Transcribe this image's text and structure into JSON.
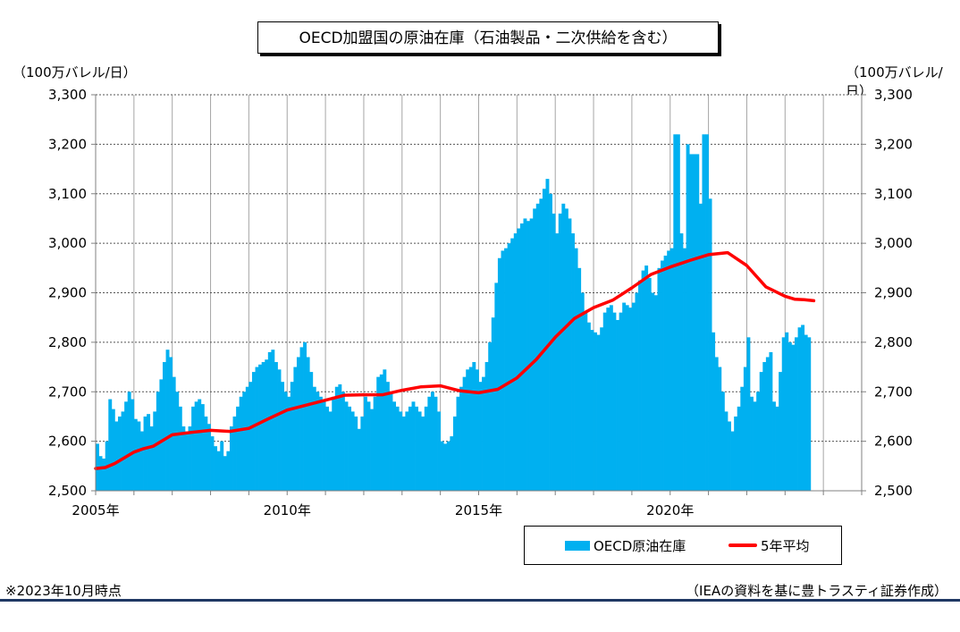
{
  "title": "OECD加盟国の原油在庫（石油製品・二次供給を含む）",
  "unit_left": "（100万バレル/日）",
  "unit_right": "（100万バレル/日）",
  "note_left": "※2023年10月時点",
  "note_right": "（IEAの資料を基に豊トラスティ証券作成）",
  "colors": {
    "bars": "#00b0f0",
    "line": "#ff0000",
    "footer_rule": "#1f3864"
  },
  "chart_data": {
    "type": "bar",
    "ylim": [
      2500,
      3300
    ],
    "y_ticks": [
      2500,
      2600,
      2700,
      2800,
      2900,
      3000,
      3100,
      3200,
      3300
    ],
    "y_tick_labels": [
      "2,500",
      "2,600",
      "2,700",
      "2,800",
      "2,900",
      "3,000",
      "3,100",
      "3,200",
      "3,300"
    ],
    "x_range": [
      "2005-01",
      "2024-12"
    ],
    "x_tick_labels": [
      {
        "year": 2005,
        "label": "2005年"
      },
      {
        "year": 2010,
        "label": "2010年"
      },
      {
        "year": 2015,
        "label": "2015年"
      },
      {
        "year": 2020,
        "label": "2020年"
      }
    ],
    "grid": "vertical yearly, horizontal dotted",
    "legend_position": "bottom-right",
    "series": [
      {
        "name": "OECD原油在庫",
        "kind": "bar",
        "start": "2005-01",
        "values": [
          2595,
          2570,
          2565,
          2600,
          2685,
          2665,
          2640,
          2650,
          2660,
          2680,
          2700,
          2685,
          2645,
          2640,
          2620,
          2650,
          2655,
          2630,
          2660,
          2700,
          2725,
          2760,
          2785,
          2770,
          2730,
          2700,
          2670,
          2630,
          2620,
          2630,
          2670,
          2680,
          2685,
          2675,
          2650,
          2635,
          2610,
          2590,
          2580,
          2600,
          2570,
          2580,
          2630,
          2650,
          2670,
          2690,
          2700,
          2710,
          2720,
          2740,
          2750,
          2755,
          2760,
          2765,
          2780,
          2785,
          2760,
          2745,
          2720,
          2700,
          2690,
          2720,
          2750,
          2770,
          2790,
          2800,
          2770,
          2740,
          2710,
          2700,
          2690,
          2680,
          2670,
          2660,
          2690,
          2710,
          2715,
          2700,
          2680,
          2670,
          2660,
          2650,
          2625,
          2650,
          2690,
          2680,
          2665,
          2690,
          2730,
          2735,
          2745,
          2720,
          2700,
          2680,
          2670,
          2660,
          2650,
          2660,
          2670,
          2680,
          2670,
          2660,
          2650,
          2670,
          2690,
          2700,
          2690,
          2660,
          2600,
          2595,
          2600,
          2610,
          2650,
          2690,
          2710,
          2730,
          2745,
          2750,
          2760,
          2745,
          2720,
          2730,
          2760,
          2800,
          2850,
          2920,
          2970,
          2985,
          2990,
          3000,
          3010,
          3020,
          3030,
          3040,
          3050,
          3045,
          3050,
          3070,
          3080,
          3090,
          3110,
          3130,
          3100,
          3060,
          3020,
          3060,
          3080,
          3070,
          3050,
          3020,
          2990,
          2950,
          2900,
          2860,
          2840,
          2825,
          2820,
          2815,
          2830,
          2860,
          2870,
          2875,
          2860,
          2845,
          2860,
          2880,
          2875,
          2870,
          2880,
          2900,
          2925,
          2945,
          2955,
          2930,
          2900,
          2895,
          2950,
          2965,
          2975,
          2985,
          2990,
          3220,
          3220,
          3020,
          2990,
          3200,
          3180,
          3180,
          3180,
          3080,
          3220,
          3220,
          3090,
          2820,
          2770,
          2750,
          2700,
          2660,
          2640,
          2620,
          2650,
          2670,
          2710,
          2750,
          2810,
          2690,
          2680,
          2700,
          2740,
          2760,
          2770,
          2780,
          2680,
          2670,
          2740,
          2810,
          2820,
          2800,
          2795,
          2810,
          2830,
          2835,
          2815,
          2810
        ]
      },
      {
        "name": "5年平均",
        "kind": "line",
        "points": [
          [
            "2005-01",
            2545
          ],
          [
            "2005-04",
            2547
          ],
          [
            "2005-07",
            2555
          ],
          [
            "2006-01",
            2578
          ],
          [
            "2006-04",
            2585
          ],
          [
            "2006-07",
            2590
          ],
          [
            "2007-01",
            2613
          ],
          [
            "2007-07",
            2618
          ],
          [
            "2008-01",
            2622
          ],
          [
            "2008-07",
            2620
          ],
          [
            "2009-01",
            2626
          ],
          [
            "2009-07",
            2645
          ],
          [
            "2010-01",
            2663
          ],
          [
            "2010-07",
            2673
          ],
          [
            "2011-01",
            2683
          ],
          [
            "2011-07",
            2693
          ],
          [
            "2012-01",
            2694
          ],
          [
            "2012-07",
            2694
          ],
          [
            "2013-01",
            2703
          ],
          [
            "2013-07",
            2710
          ],
          [
            "2014-01",
            2712
          ],
          [
            "2014-07",
            2702
          ],
          [
            "2015-01",
            2698
          ],
          [
            "2015-07",
            2705
          ],
          [
            "2016-01",
            2728
          ],
          [
            "2016-07",
            2765
          ],
          [
            "2017-01",
            2810
          ],
          [
            "2017-07",
            2848
          ],
          [
            "2018-01",
            2870
          ],
          [
            "2018-07",
            2885
          ],
          [
            "2019-01",
            2910
          ],
          [
            "2019-07",
            2937
          ],
          [
            "2020-01",
            2952
          ],
          [
            "2020-07",
            2965
          ],
          [
            "2021-01",
            2977
          ],
          [
            "2021-07",
            2981
          ],
          [
            "2022-01",
            2955
          ],
          [
            "2022-07",
            2912
          ],
          [
            "2023-01",
            2893
          ],
          [
            "2023-04",
            2887
          ],
          [
            "2023-07",
            2886
          ],
          [
            "2023-10",
            2884
          ]
        ]
      }
    ]
  },
  "legend": {
    "bar_label": "OECD原油在庫",
    "line_label": "5年平均"
  }
}
